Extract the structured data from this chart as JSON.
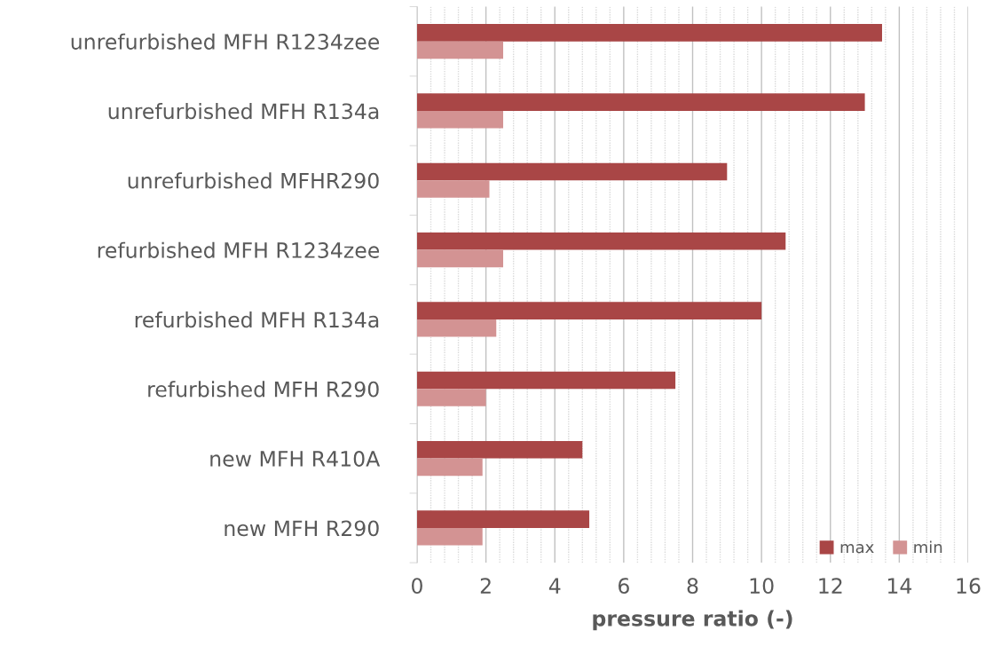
{
  "chart_data": {
    "type": "bar",
    "orientation": "horizontal",
    "xlabel": "pressure ratio (-)",
    "categories": [
      "unrefurbished MFH R1234zee",
      "unrefurbished MFH R134a",
      "unrefurbished MFHR290",
      "refurbished MFH R1234zee",
      "refurbished MFH R134a",
      "refurbished MFH R290",
      "new MFH R410A",
      "new MFH R290"
    ],
    "series": [
      {
        "name": "max",
        "color": "#a94646",
        "values": [
          13.5,
          13,
          9,
          10.7,
          10,
          7.5,
          4.8,
          5
        ]
      },
      {
        "name": "min",
        "color": "#d39393",
        "values": [
          2.5,
          2.5,
          2.1,
          2.5,
          2.3,
          2.0,
          1.9,
          1.9
        ]
      }
    ],
    "xlim": [
      0,
      16
    ],
    "xticks": [
      0,
      {
        "value": 0.4,
        "label": null
      },
      {
        "value": 0.8,
        "label": null
      },
      {
        "value": 1.2,
        "label": null
      },
      {
        "value": 1.6,
        "label": null
      },
      2,
      {
        "value": 2.4,
        "label": null
      },
      {
        "value": 2.8,
        "label": null
      },
      {
        "value": 3.2,
        "label": null
      },
      {
        "value": 3.6,
        "label": null
      },
      4,
      {
        "value": 4.4,
        "label": null
      },
      {
        "value": 4.8,
        "label": null
      },
      {
        "value": 5.2,
        "label": null
      },
      {
        "value": 5.6,
        "label": null
      },
      6,
      {
        "value": 6.4,
        "label": null
      },
      {
        "value": 6.8,
        "label": null
      },
      {
        "value": 7.2,
        "label": null
      },
      {
        "value": 7.6,
        "label": null
      },
      8,
      {
        "value": 8.4,
        "label": null
      },
      {
        "value": 8.8,
        "label": null
      },
      {
        "value": 9.2,
        "label": null
      },
      {
        "value": 9.6,
        "label": null
      },
      10,
      {
        "value": 10.4,
        "label": null
      },
      {
        "value": 10.8,
        "label": null
      },
      {
        "value": 11.2,
        "label": null
      },
      {
        "value": 11.6,
        "label": null
      },
      12,
      {
        "value": 12.4,
        "label": null
      },
      {
        "value": 12.8,
        "label": null
      },
      {
        "value": 13.2,
        "label": null
      },
      {
        "value": 13.6,
        "label": null
      },
      14,
      {
        "value": 14.4,
        "label": null
      },
      {
        "value": 14.8,
        "label": null
      },
      {
        "value": 15.2,
        "label": null
      },
      {
        "value": 15.6,
        "label": null
      },
      16
    ],
    "grid": "x",
    "legend": "bottom right"
  }
}
